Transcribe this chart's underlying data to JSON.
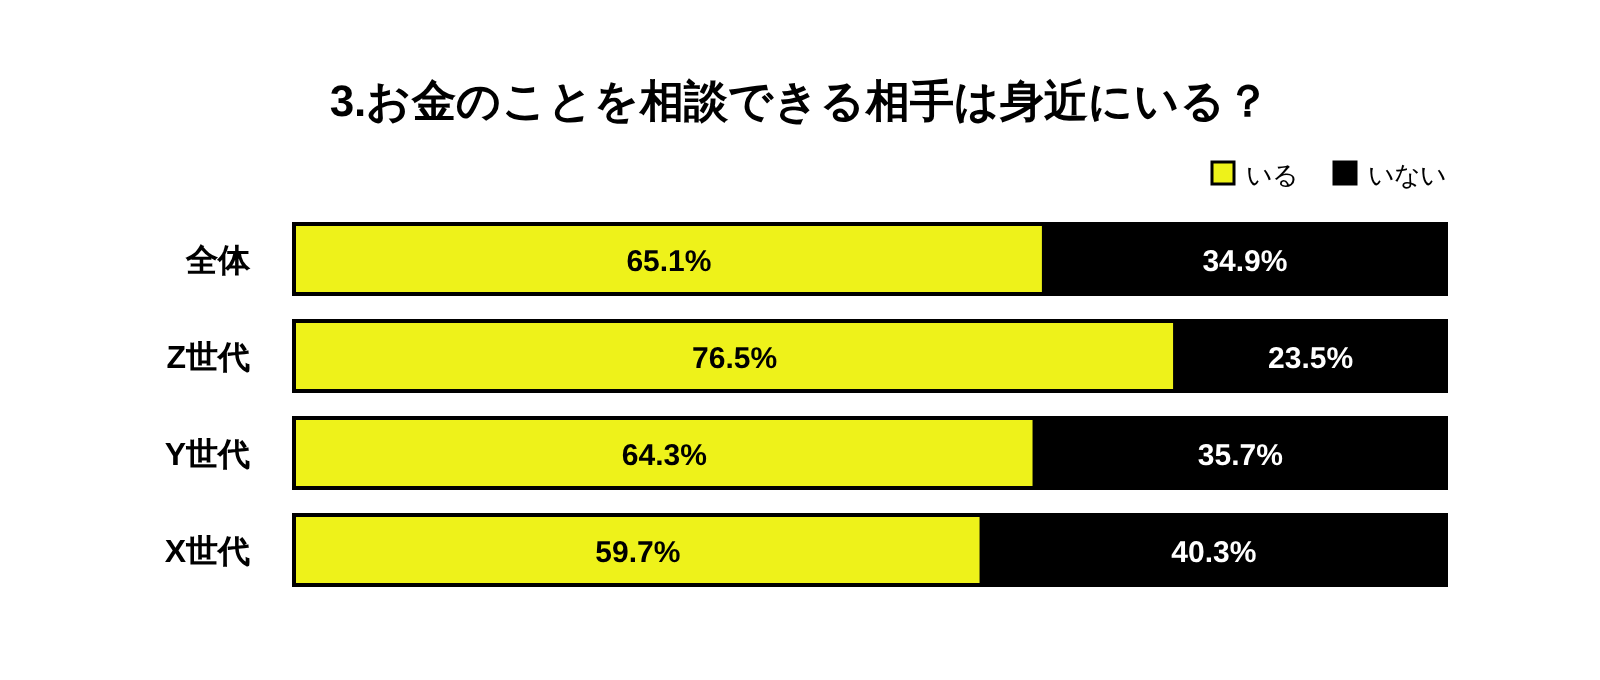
{
  "chart_data": {
    "type": "bar",
    "orientation": "horizontal",
    "stacked": true,
    "title": "3.お金のことを相談できる相手は身近にいる？",
    "categories": [
      "全体",
      "Z世代",
      "Y世代",
      "X世代"
    ],
    "legend": "top right",
    "series": [
      {
        "name": "いる",
        "color": "#eef21a",
        "values": [
          65.1,
          76.5,
          64.3,
          59.7
        ],
        "value_labels": [
          "65.1%",
          "76.5%",
          "64.3%",
          "59.7%"
        ]
      },
      {
        "name": "いない",
        "color": "#000000",
        "values": [
          34.9,
          23.5,
          35.7,
          40.3
        ],
        "value_labels": [
          "34.9%",
          "23.5%",
          "35.7%",
          "40.3%"
        ]
      }
    ]
  }
}
